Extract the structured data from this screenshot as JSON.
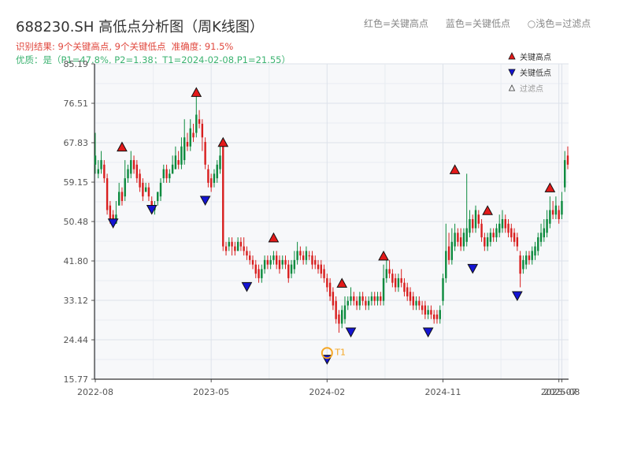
{
  "page": {
    "title": "688230.SH 高低点分析图（周K线图）",
    "result_text": "识别结果: 9个关键高点, 9个关键低点",
    "accuracy_text": "准确度: 91.5%",
    "quality_text": "优质：是（P1=47.8%, P2=1.38；T1=2024-02-08,P1=21.55）",
    "header_legend": {
      "red": "红色=关键高点",
      "blue": "蓝色=关键低点",
      "hollow": "○浅色=过滤点"
    }
  },
  "colors": {
    "title": "#333333",
    "result": "#e0473d",
    "quality": "#3cb371",
    "up_candle": "#d81e1e",
    "down_candle": "#0c8a3e",
    "high_marker": "#e31a1a",
    "low_marker": "#1414d2",
    "t1_marker": "#f5a623",
    "plot_bg": "#f7f8fa",
    "grid": "#dde2ea"
  },
  "chart_data": {
    "type": "candlestick",
    "title": "688230.SH 高低点分析图（周K线图）",
    "y_ticks": [
      15.77,
      24.44,
      33.12,
      41.8,
      50.48,
      59.15,
      67.83,
      76.51,
      85.19
    ],
    "ylim": [
      15.77,
      85.19
    ],
    "x_ticks": [
      {
        "i": 0,
        "label": "2022-08"
      },
      {
        "i": 39,
        "label": "2023-05"
      },
      {
        "i": 78,
        "label": "2024-02"
      },
      {
        "i": 117,
        "label": "2024-11"
      },
      {
        "i": 156,
        "label": "2025-07"
      },
      {
        "i": 157,
        "label": "2025-08"
      }
    ],
    "legend": {
      "position": "top-right",
      "items": [
        {
          "label": "关键高点",
          "kind": "high"
        },
        {
          "label": "关键低点",
          "kind": "low"
        },
        {
          "label": "过滤点",
          "kind": "filtered"
        }
      ]
    },
    "candles": [
      [
        65,
        63,
        70,
        61
      ],
      [
        62,
        61,
        64,
        60
      ],
      [
        64,
        62,
        66,
        61
      ],
      [
        60,
        63,
        64,
        59
      ],
      [
        53,
        60,
        61,
        52
      ],
      [
        51,
        54,
        55,
        50
      ],
      [
        50,
        52,
        53,
        49
      ],
      [
        52,
        50,
        55,
        50
      ],
      [
        57,
        54,
        59,
        54
      ],
      [
        55,
        57,
        58,
        54
      ],
      [
        60,
        56,
        64,
        55
      ],
      [
        62,
        60,
        63,
        59
      ],
      [
        64,
        61,
        66,
        60
      ],
      [
        62,
        64,
        65,
        61
      ],
      [
        60,
        63,
        64,
        59
      ],
      [
        58,
        61,
        62,
        57
      ],
      [
        56,
        59,
        60,
        55
      ],
      [
        58,
        57,
        59,
        57
      ],
      [
        56,
        58,
        59,
        55
      ],
      [
        53,
        55,
        56,
        53
      ],
      [
        54,
        53,
        55,
        52
      ],
      [
        57,
        55,
        57,
        54
      ],
      [
        59,
        56,
        60,
        55
      ],
      [
        62,
        60,
        63,
        59
      ],
      [
        60,
        62,
        63,
        59
      ],
      [
        61,
        60,
        62,
        59
      ],
      [
        63,
        61,
        65,
        61
      ],
      [
        65,
        62,
        67,
        62
      ],
      [
        63,
        64,
        66,
        62
      ],
      [
        67,
        63,
        69,
        62
      ],
      [
        69,
        64,
        73,
        63
      ],
      [
        67,
        68,
        70,
        66
      ],
      [
        71,
        67,
        73,
        66
      ],
      [
        69,
        70,
        72,
        68
      ],
      [
        74,
        70,
        78,
        69
      ],
      [
        72,
        73,
        75,
        71
      ],
      [
        69,
        72,
        73,
        66
      ],
      [
        63,
        68,
        69,
        62
      ],
      [
        59,
        62,
        63,
        58
      ],
      [
        58,
        60,
        61,
        57
      ],
      [
        61,
        59,
        62,
        58
      ],
      [
        63,
        60,
        64,
        59
      ],
      [
        65,
        62,
        67,
        61
      ],
      [
        45,
        67,
        68,
        44
      ],
      [
        44,
        45,
        46,
        43
      ],
      [
        46,
        45,
        47,
        44
      ],
      [
        45,
        46,
        47,
        43
      ],
      [
        44,
        45,
        46,
        43
      ],
      [
        46,
        44,
        47,
        44
      ],
      [
        45,
        46,
        47,
        44
      ],
      [
        44,
        45,
        47,
        43
      ],
      [
        43,
        44,
        45,
        42
      ],
      [
        42,
        43,
        44,
        41
      ],
      [
        41,
        42,
        43,
        40
      ],
      [
        39,
        41,
        42,
        38
      ],
      [
        38,
        40,
        41,
        37
      ],
      [
        40,
        38,
        41,
        37
      ],
      [
        42,
        40,
        43,
        39
      ],
      [
        41,
        42,
        43,
        40
      ],
      [
        42,
        41,
        43,
        40
      ],
      [
        43,
        42,
        44,
        41
      ],
      [
        41,
        43,
        44,
        40
      ],
      [
        40,
        42,
        43,
        39
      ],
      [
        42,
        41,
        43,
        40
      ],
      [
        41,
        42,
        43,
        40
      ],
      [
        38,
        41,
        42,
        37
      ],
      [
        41,
        39,
        42,
        38
      ],
      [
        42,
        40,
        44,
        39
      ],
      [
        44,
        42,
        46,
        41
      ],
      [
        43,
        44,
        45,
        42
      ],
      [
        42,
        43,
        44,
        41
      ],
      [
        44,
        42,
        45,
        41
      ],
      [
        43,
        43,
        44,
        42
      ],
      [
        41,
        43,
        44,
        40
      ],
      [
        41,
        42,
        43,
        40
      ],
      [
        40,
        41,
        42,
        39
      ],
      [
        39,
        41,
        42,
        38
      ],
      [
        38,
        40,
        41,
        37
      ],
      [
        36,
        38,
        39,
        35
      ],
      [
        34,
        37,
        38,
        33
      ],
      [
        32,
        35,
        36,
        31
      ],
      [
        29,
        33,
        34,
        28
      ],
      [
        28,
        30,
        31,
        26
      ],
      [
        31,
        28,
        32,
        27
      ],
      [
        32,
        29,
        34,
        28
      ],
      [
        33,
        32,
        34,
        31
      ],
      [
        34,
        33,
        36,
        32
      ],
      [
        33,
        34,
        35,
        32
      ],
      [
        32,
        33,
        34,
        31
      ],
      [
        34,
        32,
        35,
        31
      ],
      [
        33,
        34,
        35,
        32
      ],
      [
        32,
        33,
        34,
        31
      ],
      [
        33,
        32,
        34,
        31
      ],
      [
        34,
        33,
        35,
        32
      ],
      [
        33,
        34,
        35,
        32
      ],
      [
        34,
        33,
        35,
        32
      ],
      [
        33,
        34,
        35,
        32
      ],
      [
        38,
        33,
        41,
        32
      ],
      [
        40,
        38,
        42,
        37
      ],
      [
        39,
        40,
        42,
        38
      ],
      [
        37,
        39,
        40,
        36
      ],
      [
        36,
        38,
        39,
        35
      ],
      [
        38,
        36,
        39,
        35
      ],
      [
        37,
        38,
        40,
        36
      ],
      [
        35,
        37,
        38,
        34
      ],
      [
        34,
        36,
        37,
        33
      ],
      [
        33,
        35,
        36,
        32
      ],
      [
        32,
        34,
        35,
        31
      ],
      [
        33,
        32,
        34,
        31
      ],
      [
        32,
        33,
        34,
        31
      ],
      [
        31,
        32,
        33,
        30
      ],
      [
        30,
        32,
        33,
        29
      ],
      [
        31,
        30,
        32,
        29
      ],
      [
        30,
        31,
        32,
        29
      ],
      [
        29,
        30,
        31,
        28
      ],
      [
        29,
        30,
        31,
        28
      ],
      [
        31,
        29,
        32,
        28
      ],
      [
        38,
        33,
        39,
        32
      ],
      [
        44,
        38,
        50,
        37
      ],
      [
        42,
        45,
        48,
        41
      ],
      [
        46,
        42,
        49,
        41
      ],
      [
        48,
        45,
        50,
        44
      ],
      [
        46,
        48,
        49,
        45
      ],
      [
        45,
        47,
        49,
        44
      ],
      [
        48,
        45,
        49,
        44
      ],
      [
        49,
        46,
        61,
        45
      ],
      [
        51,
        48,
        53,
        47
      ],
      [
        49,
        51,
        52,
        48
      ],
      [
        53,
        49,
        54,
        48
      ],
      [
        50,
        52,
        53,
        49
      ],
      [
        47,
        50,
        51,
        46
      ],
      [
        45,
        47,
        48,
        44
      ],
      [
        47,
        45,
        48,
        44
      ],
      [
        48,
        46,
        49,
        45
      ],
      [
        47,
        48,
        49,
        46
      ],
      [
        49,
        47,
        50,
        46
      ],
      [
        50,
        48,
        52,
        47
      ],
      [
        51,
        49,
        53,
        48
      ],
      [
        49,
        51,
        52,
        48
      ],
      [
        48,
        50,
        51,
        47
      ],
      [
        47,
        49,
        50,
        46
      ],
      [
        46,
        48,
        49,
        45
      ],
      [
        45,
        47,
        48,
        44
      ],
      [
        39,
        43,
        44,
        36
      ],
      [
        42,
        40,
        43,
        39
      ],
      [
        43,
        41,
        44,
        40
      ],
      [
        42,
        43,
        44,
        41
      ],
      [
        44,
        42,
        45,
        41
      ],
      [
        45,
        43,
        46,
        42
      ],
      [
        47,
        44,
        48,
        43
      ],
      [
        48,
        46,
        50,
        45
      ],
      [
        49,
        47,
        51,
        46
      ],
      [
        51,
        48,
        53,
        47
      ],
      [
        53,
        50,
        56,
        49
      ],
      [
        52,
        53,
        55,
        51
      ],
      [
        54,
        52,
        56,
        51
      ],
      [
        51,
        53,
        54,
        50
      ],
      [
        55,
        52,
        57,
        51
      ],
      [
        64,
        58,
        66,
        57
      ],
      [
        63,
        65,
        67,
        62
      ]
    ],
    "key_highs": [
      [
        9,
        66
      ],
      [
        34,
        78
      ],
      [
        43,
        67
      ],
      [
        60,
        46
      ],
      [
        83,
        36
      ],
      [
        97,
        42
      ],
      [
        121,
        61
      ],
      [
        132,
        52
      ],
      [
        153,
        57
      ]
    ],
    "key_lows": [
      [
        6,
        50
      ],
      [
        19,
        53
      ],
      [
        37,
        55
      ],
      [
        51,
        36
      ],
      [
        78,
        20
      ],
      [
        86,
        26
      ],
      [
        112,
        26
      ],
      [
        127,
        40
      ],
      [
        142,
        34
      ]
    ],
    "t1": {
      "i": 78,
      "value": 21.55,
      "label": "T1"
    }
  }
}
